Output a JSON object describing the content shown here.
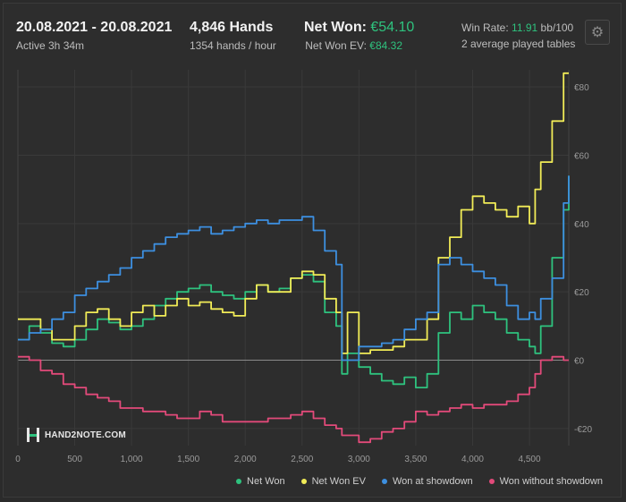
{
  "header": {
    "date_range": "20.08.2021 - 20.08.2021",
    "active_time": "Active 3h 34m",
    "hands": "4,846 Hands",
    "hands_per_hour": "1354 hands / hour",
    "net_won_label": "Net Won:",
    "net_won_value": "€54.10",
    "net_won_ev_label": "Net Won  EV:",
    "net_won_ev_value": "€84.32",
    "win_rate_label": "Win Rate:",
    "win_rate_value": "11.91",
    "win_rate_unit": "bb/100",
    "tables_text": "2 average played tables"
  },
  "logo_text": "HAND2NOTE.COM",
  "icons": {
    "settings": "gear-icon"
  },
  "colors": {
    "background": "#2d2d2d",
    "net_won": "#2ec27e",
    "net_won_ev": "#f1ec57",
    "won_at_showdown": "#3d8fe0",
    "won_without_showdown": "#e24a7a",
    "accent_green": "#2ec27e"
  },
  "chart_data": {
    "type": "line",
    "xlim": [
      0,
      4846
    ],
    "ylim": [
      -25,
      85
    ],
    "x_ticks": [
      0,
      500,
      1000,
      1500,
      2000,
      2500,
      3000,
      3500,
      4000,
      4500
    ],
    "x_tick_labels": [
      "0",
      "500",
      "1,000",
      "1,500",
      "2,000",
      "2,500",
      "3,000",
      "3,500",
      "4,000",
      "4,500"
    ],
    "y_ticks": [
      -20,
      0,
      20,
      40,
      60,
      80
    ],
    "y_tick_labels": [
      "-€20",
      "€0",
      "€20",
      "€40",
      "€60",
      "€80"
    ],
    "grid": true,
    "legend_position": "bottom-right",
    "x": [
      0,
      100,
      200,
      300,
      400,
      500,
      600,
      700,
      800,
      900,
      1000,
      1100,
      1200,
      1300,
      1400,
      1500,
      1600,
      1700,
      1800,
      1900,
      2000,
      2100,
      2200,
      2300,
      2400,
      2500,
      2600,
      2700,
      2800,
      2850,
      2900,
      3000,
      3100,
      3200,
      3300,
      3400,
      3500,
      3600,
      3700,
      3800,
      3900,
      4000,
      4100,
      4200,
      4300,
      4400,
      4500,
      4550,
      4600,
      4700,
      4800,
      4846
    ],
    "series": [
      {
        "name": "Net Won",
        "color": "#2ec27e",
        "values": [
          6,
          10,
          8,
          5,
          4,
          6,
          9,
          12,
          11,
          9,
          10,
          12,
          16,
          18,
          20,
          21,
          22,
          20,
          19,
          18,
          20,
          22,
          20,
          21,
          24,
          25,
          23,
          14,
          10,
          -4,
          2,
          -2,
          -4,
          -6,
          -7,
          -5,
          -8,
          -4,
          8,
          14,
          12,
          16,
          14,
          12,
          8,
          6,
          4,
          2,
          10,
          30,
          44,
          54
        ]
      },
      {
        "name": "Net Won  EV",
        "color": "#f1ec57",
        "values": [
          12,
          12,
          9,
          6,
          6,
          10,
          14,
          15,
          12,
          10,
          14,
          16,
          13,
          16,
          18,
          16,
          17,
          15,
          14,
          13,
          18,
          22,
          20,
          20,
          24,
          26,
          25,
          18,
          14,
          2,
          14,
          2,
          3,
          3,
          4,
          6,
          6,
          12,
          30,
          36,
          44,
          48,
          46,
          44,
          42,
          45,
          40,
          50,
          58,
          70,
          84,
          84
        ]
      },
      {
        "name": "Won at showdown",
        "color": "#3d8fe0",
        "values": [
          6,
          8,
          9,
          12,
          14,
          19,
          21,
          23,
          25,
          27,
          30,
          32,
          34,
          36,
          37,
          38,
          39,
          37,
          38,
          39,
          40,
          41,
          40,
          41,
          41,
          42,
          38,
          32,
          28,
          0,
          0,
          4,
          4,
          5,
          6,
          9,
          12,
          14,
          28,
          30,
          28,
          26,
          24,
          22,
          16,
          12,
          14,
          12,
          18,
          24,
          46,
          54
        ]
      },
      {
        "name": "Won without showdown",
        "color": "#e24a7a",
        "values": [
          1,
          0,
          -3,
          -4,
          -7,
          -8,
          -10,
          -11,
          -12,
          -14,
          -14,
          -15,
          -15,
          -16,
          -17,
          -17,
          -15,
          -16,
          -18,
          -18,
          -18,
          -18,
          -17,
          -17,
          -16,
          -15,
          -17,
          -19,
          -20,
          -22,
          -22,
          -24,
          -23,
          -21,
          -20,
          -18,
          -15,
          -16,
          -15,
          -14,
          -13,
          -14,
          -13,
          -13,
          -12,
          -10,
          -8,
          -4,
          0,
          1,
          0,
          0
        ]
      }
    ]
  },
  "legend": [
    "Net Won",
    "Net Won  EV",
    "Won at showdown",
    "Won without showdown"
  ]
}
